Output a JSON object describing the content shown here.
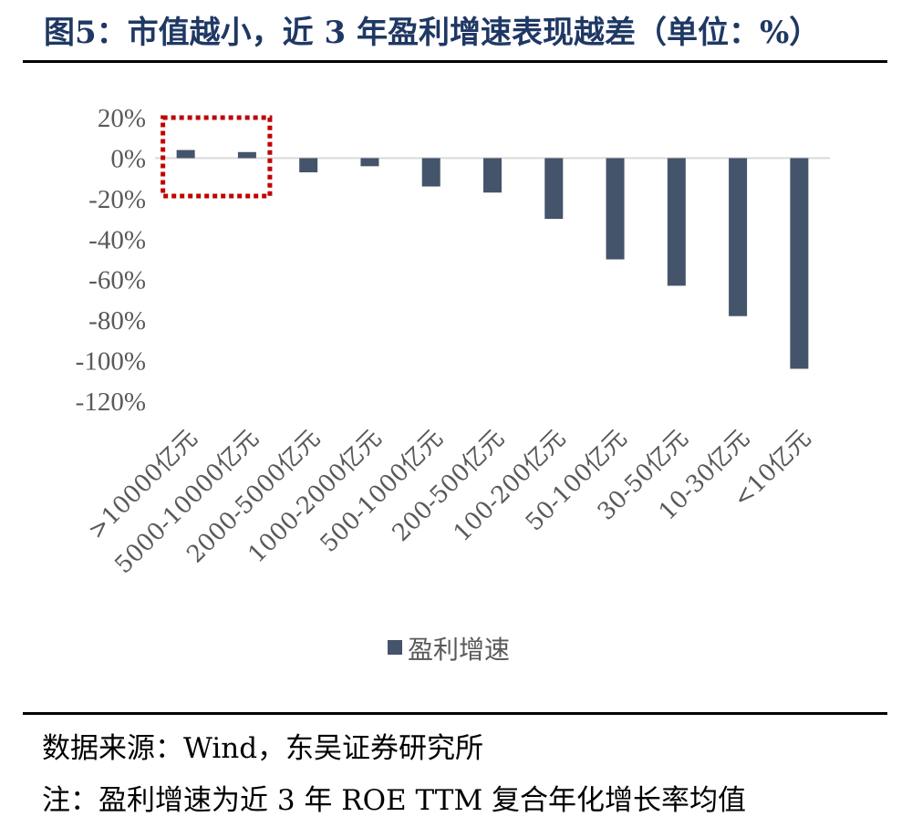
{
  "figure": {
    "title": "图5：市值越小，近 3 年盈利增速表现越差（单位：%）",
    "source": "数据来源：Wind，东吴证券研究所",
    "note": "注：盈利增速为近 3 年 ROE TTM 复合年化增长率均值"
  },
  "colors": {
    "title": "#1f3864",
    "bar": "#44546a",
    "highlight_box": "#c00000",
    "axis_text": "#595959"
  },
  "chart_data": {
    "type": "bar",
    "categories": [
      ">10000亿元",
      "5000-10000亿元",
      "2000-5000亿元",
      "1000-2000亿元",
      "500-1000亿元",
      "200-500亿元",
      "100-200亿元",
      "50-100亿元",
      "30-50亿元",
      "10-30亿元",
      "<10亿元"
    ],
    "series": [
      {
        "name": "盈利增速",
        "values": [
          4,
          3,
          -7,
          -4,
          -14,
          -17,
          -30,
          -50,
          -63,
          -78,
          -104
        ]
      }
    ],
    "ylim": [
      -120,
      20
    ],
    "yticks": [
      20,
      0,
      -20,
      -40,
      -60,
      -80,
      -100,
      -120
    ],
    "ytick_labels": [
      "20%",
      "0%",
      "-20%",
      "-40%",
      "-60%",
      "-80%",
      "-100%",
      "-120%"
    ],
    "grid": false,
    "legend_position": "bottom",
    "highlight": {
      "categories": [
        ">10000亿元",
        "5000-10000亿元"
      ],
      "style": "dotted-red-box"
    }
  }
}
